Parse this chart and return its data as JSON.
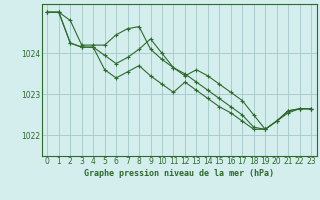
{
  "title": "Graphe pression niveau de la mer (hPa)",
  "background_color": "#d4eeee",
  "grid_color": "#aacccc",
  "line_color": "#2d6a2d",
  "marker_color": "#2d6a2d",
  "xlim": [
    -0.5,
    23.5
  ],
  "ylim": [
    1021.5,
    1025.2
  ],
  "yticks": [
    1022,
    1023,
    1024
  ],
  "xticks": [
    0,
    1,
    2,
    3,
    4,
    5,
    6,
    7,
    8,
    9,
    10,
    11,
    12,
    13,
    14,
    15,
    16,
    17,
    18,
    19,
    20,
    21,
    22,
    23
  ],
  "series": [
    [
      1025.0,
      1025.0,
      1024.8,
      1024.2,
      1024.2,
      1024.2,
      1024.45,
      1024.6,
      1024.65,
      1024.1,
      1023.85,
      1023.65,
      1023.5,
      1023.3,
      1023.1,
      1022.9,
      1022.7,
      1022.5,
      1022.2,
      1022.15,
      1022.35,
      1022.55,
      1022.65,
      1022.65
    ],
    [
      1025.0,
      1025.0,
      1024.25,
      1024.15,
      1024.15,
      1023.95,
      1023.75,
      1023.9,
      1024.1,
      1024.35,
      1024.0,
      1023.65,
      1023.45,
      1023.6,
      1023.45,
      1023.25,
      1023.05,
      1022.85,
      1022.5,
      1022.15,
      1022.35,
      1022.6,
      1022.65,
      1022.65
    ],
    [
      1025.0,
      1025.0,
      1024.25,
      1024.15,
      1024.15,
      1023.6,
      1023.4,
      1023.55,
      1023.7,
      1023.45,
      1023.25,
      1023.05,
      1023.3,
      1023.1,
      1022.9,
      1022.7,
      1022.55,
      1022.35,
      1022.15,
      1022.15,
      1022.35,
      1022.6,
      1022.65,
      1022.65
    ]
  ]
}
